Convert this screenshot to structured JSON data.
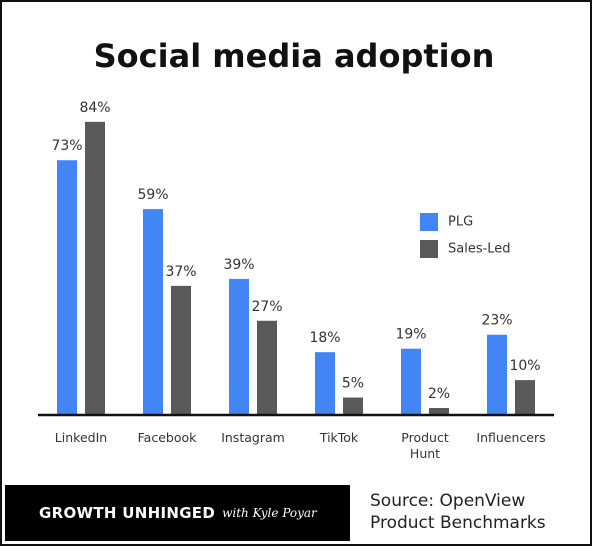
{
  "chart_data": {
    "type": "bar",
    "title": "Social media adoption",
    "categories": [
      "LinkedIn",
      "Facebook",
      "Instagram",
      "TikTok",
      "Product Hunt",
      "Influencers"
    ],
    "series": [
      {
        "name": "PLG",
        "color": "#4285f4",
        "values": [
          73,
          59,
          39,
          18,
          19,
          23
        ],
        "value_labels": [
          "73%",
          "59%",
          "39%",
          "18%",
          "19%",
          "23%"
        ]
      },
      {
        "name": "Sales-Led",
        "color": "#595959",
        "values": [
          84,
          37,
          27,
          5,
          2,
          10
        ],
        "value_labels": [
          "84%",
          "37%",
          "27%",
          "5%",
          "2%",
          "10%"
        ]
      }
    ],
    "ylim": [
      0,
      100
    ],
    "legend": "right",
    "brand": "GROWTH UNHINGED",
    "byline": "with Kyle Poyar",
    "source": "Source: OpenView Product Benchmarks"
  }
}
